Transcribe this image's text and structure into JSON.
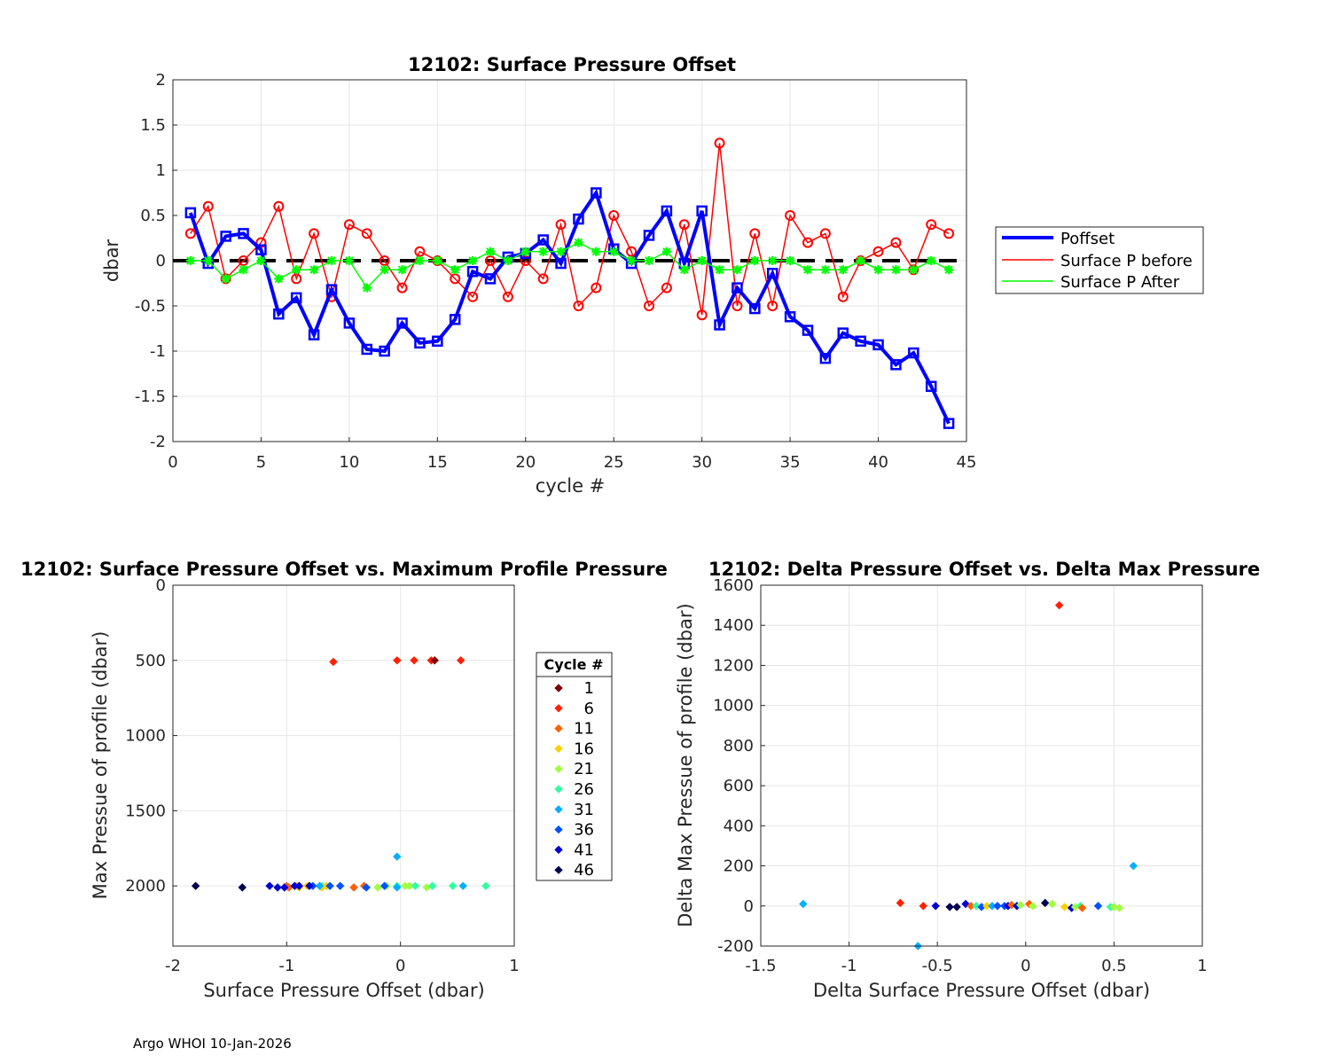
{
  "footer": "Argo WHOI 10-Jan-2026",
  "chart_data": [
    {
      "type": "line",
      "title": "12102: Surface Pressure Offset",
      "xlabel": "cycle #",
      "ylabel": "dbar",
      "xlim": [
        0,
        45
      ],
      "ylim": [
        -2,
        2
      ],
      "xticks": [
        "0",
        "5",
        "10",
        "15",
        "20",
        "25",
        "30",
        "35",
        "40",
        "45"
      ],
      "yticks": [
        "2",
        "1.5",
        "1",
        "0.5",
        "0",
        "-0.5",
        "-1",
        "-1.5",
        "-2"
      ],
      "grid": true,
      "legend_position": "outside-right",
      "legend": [
        "Poffset",
        "Surface P before",
        "Surface P After"
      ],
      "zero_line": 0,
      "x": [
        1,
        2,
        3,
        4,
        5,
        6,
        7,
        8,
        9,
        10,
        11,
        12,
        13,
        14,
        15,
        16,
        17,
        18,
        19,
        20,
        21,
        22,
        23,
        24,
        25,
        26,
        27,
        28,
        29,
        30,
        31,
        32,
        33,
        34,
        35,
        36,
        37,
        38,
        39,
        40,
        41,
        42,
        43,
        44
      ],
      "series": [
        {
          "name": "Poffset",
          "color": "#0000ff",
          "values": [
            0.53,
            -0.03,
            0.27,
            0.3,
            0.12,
            -0.59,
            -0.41,
            -0.82,
            -0.32,
            -0.69,
            -0.98,
            -1.0,
            -0.69,
            -0.91,
            -0.89,
            -0.65,
            -0.12,
            -0.2,
            0.04,
            0.08,
            0.23,
            -0.03,
            0.46,
            0.75,
            0.13,
            -0.03,
            0.28,
            0.55,
            -0.03,
            0.55,
            -0.71,
            -0.3,
            -0.53,
            -0.14,
            -0.62,
            -0.77,
            -1.08,
            -0.8,
            -0.89,
            -0.93,
            -1.15,
            -1.02,
            -1.39,
            -1.8
          ]
        },
        {
          "name": "Surface P before",
          "color": "#ff0000",
          "values": [
            0.3,
            0.6,
            -0.2,
            0.0,
            0.2,
            0.6,
            -0.2,
            0.3,
            -0.4,
            0.4,
            0.3,
            0.0,
            -0.3,
            0.1,
            0.0,
            -0.2,
            -0.4,
            0.0,
            -0.4,
            0.0,
            -0.2,
            0.4,
            -0.5,
            -0.3,
            0.5,
            0.1,
            -0.5,
            -0.3,
            0.4,
            -0.6,
            1.3,
            -0.5,
            0.3,
            -0.5,
            0.5,
            0.2,
            0.3,
            -0.4,
            0.0,
            0.1,
            0.2,
            -0.1,
            0.4,
            0.3
          ]
        },
        {
          "name": "Surface P After",
          "color": "#00ff00",
          "values": [
            0.0,
            0.0,
            -0.2,
            -0.1,
            0.0,
            -0.2,
            -0.1,
            -0.1,
            0.0,
            0.0,
            -0.3,
            -0.1,
            -0.1,
            0.0,
            0.0,
            -0.1,
            0.0,
            0.1,
            0.0,
            0.1,
            0.1,
            0.1,
            0.2,
            0.1,
            0.1,
            0.0,
            0.0,
            0.1,
            -0.1,
            0.0,
            -0.1,
            -0.1,
            0.0,
            0.0,
            0.0,
            -0.1,
            -0.1,
            -0.1,
            0.0,
            -0.1,
            -0.1,
            -0.1,
            0.0,
            -0.1
          ]
        }
      ]
    },
    {
      "type": "scatter",
      "title": "12102: Surface Pressure Offset vs. Maximum Profile Pressure",
      "xlabel": "Surface Pressure Offset (dbar)",
      "ylabel": "Max Pressue of profile (dbar)",
      "xlim": [
        -2,
        1
      ],
      "ylim": [
        0,
        2400
      ],
      "y_reversed": true,
      "xticks": [
        "-2",
        "-1",
        "0",
        "1"
      ],
      "yticks": [
        "0",
        "500",
        "1000",
        "1500",
        "2000"
      ],
      "grid": true,
      "legend_title": "Cycle #",
      "legend_position": "outside-right",
      "legend": [
        {
          "label": "1",
          "color": "#800000"
        },
        {
          "label": "6",
          "color": "#ff2000"
        },
        {
          "label": "11",
          "color": "#ff6000"
        },
        {
          "label": "16",
          "color": "#ffd000"
        },
        {
          "label": "21",
          "color": "#a0ff40"
        },
        {
          "label": "26",
          "color": "#30ffa0"
        },
        {
          "label": "31",
          "color": "#00b0ff"
        },
        {
          "label": "36",
          "color": "#0050ff"
        },
        {
          "label": "41",
          "color": "#0000d0"
        },
        {
          "label": "46",
          "color": "#000050"
        }
      ],
      "points": [
        {
          "x": 0.53,
          "y": 500,
          "c": "#ff2000"
        },
        {
          "x": -0.03,
          "y": 500,
          "c": "#ff2000"
        },
        {
          "x": 0.27,
          "y": 500,
          "c": "#ff2000"
        },
        {
          "x": 0.3,
          "y": 500,
          "c": "#ff2000"
        },
        {
          "x": 0.12,
          "y": 500,
          "c": "#ff2000"
        },
        {
          "x": -0.59,
          "y": 510,
          "c": "#ff2000"
        },
        {
          "x": -0.41,
          "y": 2010,
          "c": "#ff6000"
        },
        {
          "x": -0.82,
          "y": 2000,
          "c": "#ffd000"
        },
        {
          "x": -0.32,
          "y": 2000,
          "c": "#ff6000"
        },
        {
          "x": -0.69,
          "y": 2000,
          "c": "#30ffa0"
        },
        {
          "x": -0.98,
          "y": 2010,
          "c": "#ff6000"
        },
        {
          "x": -1.0,
          "y": 2000,
          "c": "#ff6000"
        },
        {
          "x": -0.69,
          "y": 2010,
          "c": "#ffd000"
        },
        {
          "x": -0.91,
          "y": 2000,
          "c": "#ffd000"
        },
        {
          "x": -0.89,
          "y": 2010,
          "c": "#ffd000"
        },
        {
          "x": -0.65,
          "y": 2000,
          "c": "#ffd000"
        },
        {
          "x": -0.2,
          "y": 2010,
          "c": "#a0ff40"
        },
        {
          "x": -0.12,
          "y": 2000,
          "c": "#a0ff40"
        },
        {
          "x": 0.04,
          "y": 2000,
          "c": "#a0ff40"
        },
        {
          "x": 0.08,
          "y": 2000,
          "c": "#a0ff40"
        },
        {
          "x": 0.23,
          "y": 2010,
          "c": "#a0ff40"
        },
        {
          "x": -0.03,
          "y": 2000,
          "c": "#30ffa0"
        },
        {
          "x": 0.46,
          "y": 2000,
          "c": "#30ffa0"
        },
        {
          "x": 0.75,
          "y": 2000,
          "c": "#30ffa0"
        },
        {
          "x": 0.13,
          "y": 2000,
          "c": "#30ffa0"
        },
        {
          "x": 0.28,
          "y": 2000,
          "c": "#30ffa0"
        },
        {
          "x": 0.55,
          "y": 2000,
          "c": "#00b0ff"
        },
        {
          "x": -0.03,
          "y": 1805,
          "c": "#00b0ff"
        },
        {
          "x": -0.71,
          "y": 2000,
          "c": "#00b0ff"
        },
        {
          "x": -0.3,
          "y": 2010,
          "c": "#0050ff"
        },
        {
          "x": -0.53,
          "y": 2000,
          "c": "#0050ff"
        },
        {
          "x": -0.14,
          "y": 2000,
          "c": "#0050ff"
        },
        {
          "x": -0.62,
          "y": 2000,
          "c": "#0050ff"
        },
        {
          "x": -0.77,
          "y": 2000,
          "c": "#0050ff"
        },
        {
          "x": -1.08,
          "y": 2010,
          "c": "#0000d0"
        },
        {
          "x": -0.8,
          "y": 2000,
          "c": "#0000d0"
        },
        {
          "x": -0.89,
          "y": 2000,
          "c": "#0000d0"
        },
        {
          "x": -0.93,
          "y": 2000,
          "c": "#0000d0"
        },
        {
          "x": -1.15,
          "y": 2000,
          "c": "#0000d0"
        },
        {
          "x": -1.02,
          "y": 2010,
          "c": "#0000d0"
        },
        {
          "x": -1.39,
          "y": 2010,
          "c": "#000050"
        },
        {
          "x": -1.8,
          "y": 2000,
          "c": "#000050"
        },
        {
          "x": 0.3,
          "y": 500,
          "c": "#800000"
        },
        {
          "x": -0.03,
          "y": 2010,
          "c": "#00b0ff"
        }
      ]
    },
    {
      "type": "scatter",
      "title": "12102: Delta Pressure Offset vs. Delta Max Pressure",
      "xlabel": "Delta Surface Pressure Offset (dbar)",
      "ylabel": "Delta Max Pressue of profile (dbar)",
      "xlim": [
        -1.5,
        1
      ],
      "ylim": [
        -200,
        1600
      ],
      "xticks": [
        "-1.5",
        "-1",
        "-0.5",
        "0",
        "0.5",
        "1"
      ],
      "yticks": [
        "1600",
        "1400",
        "1200",
        "1000",
        "800",
        "600",
        "400",
        "200",
        "0",
        "-200"
      ],
      "grid": true,
      "points": [
        {
          "x": 0.19,
          "y": 1500,
          "c": "#ff2000"
        },
        {
          "x": 0.61,
          "y": 200,
          "c": "#00b0ff"
        },
        {
          "x": -1.26,
          "y": 10,
          "c": "#00b0ff"
        },
        {
          "x": -0.61,
          "y": -200,
          "c": "#00b0ff"
        },
        {
          "x": -0.71,
          "y": 15,
          "c": "#ff2000"
        },
        {
          "x": -0.58,
          "y": 0,
          "c": "#ff2000"
        },
        {
          "x": -0.51,
          "y": 0,
          "c": "#0000d0"
        },
        {
          "x": -0.43,
          "y": -5,
          "c": "#000050"
        },
        {
          "x": -0.39,
          "y": -5,
          "c": "#000050"
        },
        {
          "x": -0.34,
          "y": 10,
          "c": "#0000d0"
        },
        {
          "x": -0.31,
          "y": 0,
          "c": "#ff6000"
        },
        {
          "x": -0.28,
          "y": 0,
          "c": "#30ffa0"
        },
        {
          "x": -0.25,
          "y": -5,
          "c": "#0050ff"
        },
        {
          "x": -0.22,
          "y": 0,
          "c": "#ffd000"
        },
        {
          "x": -0.19,
          "y": 0,
          "c": "#00b0ff"
        },
        {
          "x": -0.16,
          "y": 0,
          "c": "#0050ff"
        },
        {
          "x": -0.12,
          "y": 0,
          "c": "#0050ff"
        },
        {
          "x": -0.1,
          "y": 0,
          "c": "#0000d0"
        },
        {
          "x": -0.08,
          "y": 5,
          "c": "#ff6000"
        },
        {
          "x": -0.05,
          "y": 0,
          "c": "#0000d0"
        },
        {
          "x": -0.03,
          "y": 5,
          "c": "#a0ff40"
        },
        {
          "x": 0.02,
          "y": 10,
          "c": "#ff6000"
        },
        {
          "x": 0.04,
          "y": 0,
          "c": "#a0ff40"
        },
        {
          "x": 0.11,
          "y": 15,
          "c": "#000050"
        },
        {
          "x": 0.15,
          "y": 10,
          "c": "#a0ff40"
        },
        {
          "x": 0.22,
          "y": -5,
          "c": "#ffd000"
        },
        {
          "x": 0.26,
          "y": -10,
          "c": "#0000d0"
        },
        {
          "x": 0.28,
          "y": -5,
          "c": "#a0ff40"
        },
        {
          "x": 0.31,
          "y": 0,
          "c": "#30ffa0"
        },
        {
          "x": 0.32,
          "y": -10,
          "c": "#ff6000"
        },
        {
          "x": 0.41,
          "y": 0,
          "c": "#0050ff"
        },
        {
          "x": 0.48,
          "y": -5,
          "c": "#30ffa0"
        },
        {
          "x": 0.5,
          "y": -5,
          "c": "#a0ff40"
        },
        {
          "x": 0.53,
          "y": -10,
          "c": "#a0ff40"
        }
      ]
    }
  ]
}
